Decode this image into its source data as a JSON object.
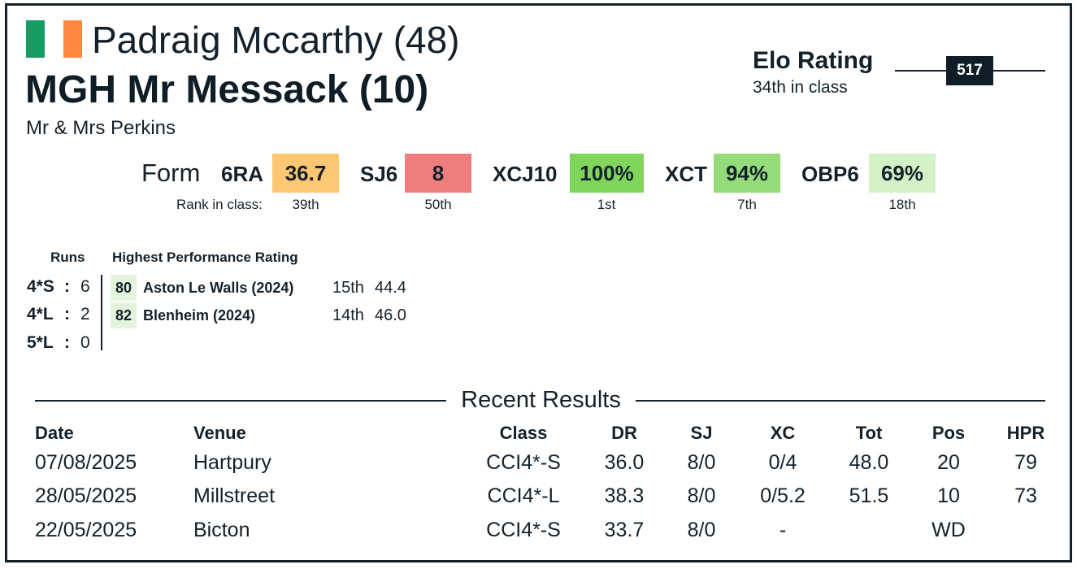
{
  "header": {
    "rider": "Padraig Mccarthy (48)",
    "horse": "MGH Mr Messack (10)",
    "owner": "Mr & Mrs Perkins",
    "flag_colors": [
      "#169b62",
      "#ffffff",
      "#ff883e"
    ]
  },
  "elo": {
    "title": "Elo Rating",
    "sub": "34th in class",
    "value": "517"
  },
  "form": {
    "label": "Form",
    "rank_label": "Rank in class:",
    "items": [
      {
        "code": "6RA",
        "value": "36.7",
        "rank": "39th",
        "color": "#fdc774"
      },
      {
        "code": "SJ6",
        "value": "8",
        "rank": "50th",
        "color": "#f07d7d"
      },
      {
        "code": "XCJ10",
        "value": "100%",
        "rank": "1st",
        "color": "#7fd65a"
      },
      {
        "code": "XCT",
        "value": "94%",
        "rank": "7th",
        "color": "#93dc79"
      },
      {
        "code": "OBP6",
        "value": "69%",
        "rank": "18th",
        "color": "#d3f1c6"
      }
    ]
  },
  "runs": {
    "header": "Runs",
    "hpr_header": "Highest Performance Rating",
    "rows": [
      {
        "level": "4*S",
        "sep": ":",
        "count": "6"
      },
      {
        "level": "4*L",
        "sep": ":",
        "count": "2"
      },
      {
        "level": "5*L",
        "sep": ":",
        "count": "0"
      }
    ],
    "hpr": [
      {
        "score": "80",
        "event": "Aston Le Walls  (2024)",
        "rank": "15th",
        "value": "44.4"
      },
      {
        "score": "82",
        "event": "Blenheim  (2024)",
        "rank": "14th",
        "value": "46.0"
      }
    ]
  },
  "results": {
    "title": "Recent Results",
    "columns": [
      "Date",
      "Venue",
      "Class",
      "DR",
      "SJ",
      "XC",
      "Tot",
      "Pos",
      "HPR"
    ],
    "rows": [
      [
        "07/08/2025",
        "Hartpury",
        "CCI4*-S",
        "36.0",
        "8/0",
        "0/4",
        "48.0",
        "20",
        "79"
      ],
      [
        "28/05/2025",
        "Millstreet",
        "CCI4*-L",
        "38.3",
        "8/0",
        "0/5.2",
        "51.5",
        "10",
        "73"
      ],
      [
        "22/05/2025",
        "Bicton",
        "CCI4*-S",
        "33.7",
        "8/0",
        "-",
        "",
        "WD",
        ""
      ]
    ]
  }
}
